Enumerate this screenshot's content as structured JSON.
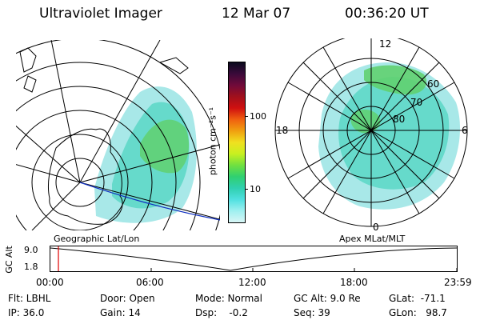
{
  "header": {
    "instrument": "Ultraviolet Imager",
    "date": "12 Mar 07",
    "time": "00:36:20 UT"
  },
  "left_map": {
    "caption": "Geographic Lat/Lon"
  },
  "colorbar": {
    "unit_label": "photon cm⁻²s⁻¹",
    "ticks": [
      "100",
      "10"
    ],
    "colors": [
      "#0a0a1e",
      "#3a0a3a",
      "#700a3a",
      "#a0101c",
      "#d01010",
      "#f06010",
      "#f0a010",
      "#f0e020",
      "#c8f020",
      "#70e040",
      "#30d070",
      "#30d0b0",
      "#50e0e0",
      "#a0f0f0",
      "#d8f6f6"
    ]
  },
  "polar_map": {
    "caption": "Apex MLat/MLT",
    "mlt_labels": {
      "top": "12",
      "left": "18",
      "right": "6",
      "bottom": "0"
    },
    "lat_labels": [
      "60",
      "70",
      "80"
    ]
  },
  "altitude_plot": {
    "ylabel": "GC Alt",
    "yticks": [
      "9.0",
      "1.8"
    ],
    "xticks": [
      "00:00",
      "06:00",
      "12:00",
      "18:00",
      "23:59"
    ],
    "marker_color": "#e00000"
  },
  "footer": {
    "flt": "Flt: LBHL",
    "ip": "IP: 36.0",
    "door": "Door: Open",
    "gain": "Gain: 14",
    "mode": "Mode: Normal",
    "dsp": "Dsp:    -0.2",
    "gc_alt": "GC Alt: 9.0 Re",
    "seq": "Seq: 39",
    "glat": "GLat:  -71.1",
    "glon": "GLon:   98.7"
  }
}
